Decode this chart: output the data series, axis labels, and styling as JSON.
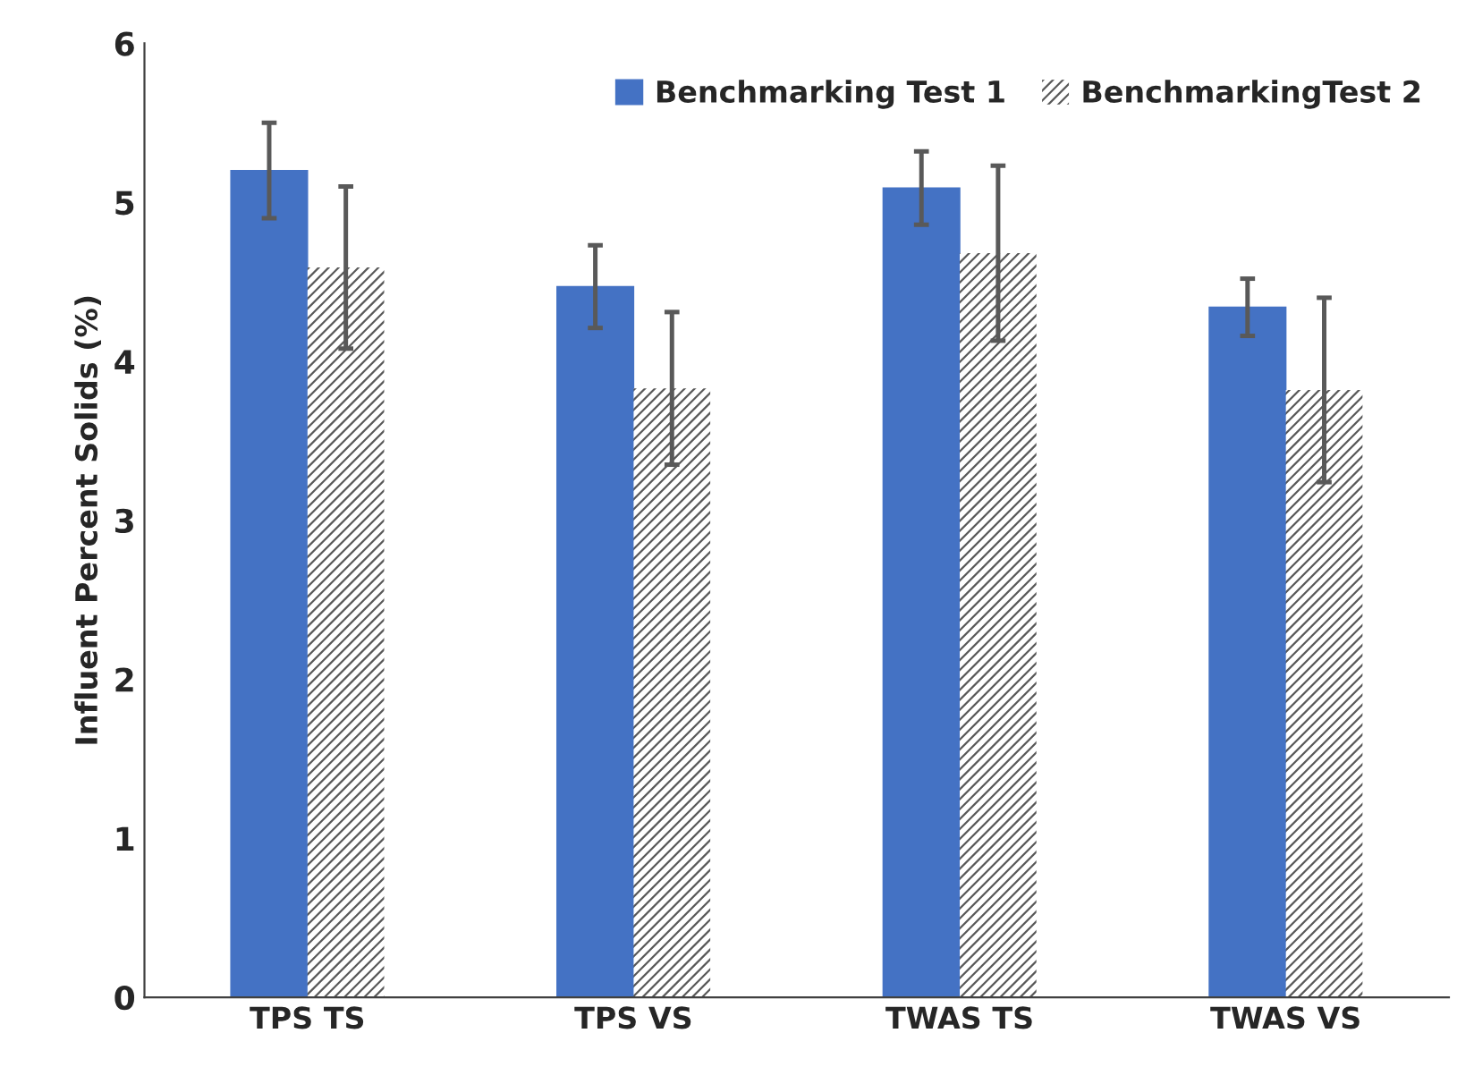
{
  "chart_data": {
    "type": "bar",
    "ylabel": "Influent Percent Solids (%)",
    "categories": [
      "TPS TS",
      "TPS VS",
      "TWAS TS",
      "TWAS VS"
    ],
    "series": [
      {
        "name": "Benchmarking Test 1",
        "color": "#4472c4",
        "values": [
          5.2,
          4.47,
          5.09,
          4.34
        ],
        "errors": [
          0.3,
          0.26,
          0.23,
          0.18
        ]
      },
      {
        "name": "BenchmarkingTest 2",
        "color": "#595959",
        "values": [
          4.59,
          3.83,
          4.68,
          3.82
        ],
        "errors": [
          0.51,
          0.48,
          0.55,
          0.58
        ]
      }
    ],
    "ylim": [
      0,
      6
    ],
    "yticks": [
      0,
      1,
      2,
      3,
      4,
      5,
      6
    ],
    "grid": false,
    "legend": "top right"
  }
}
